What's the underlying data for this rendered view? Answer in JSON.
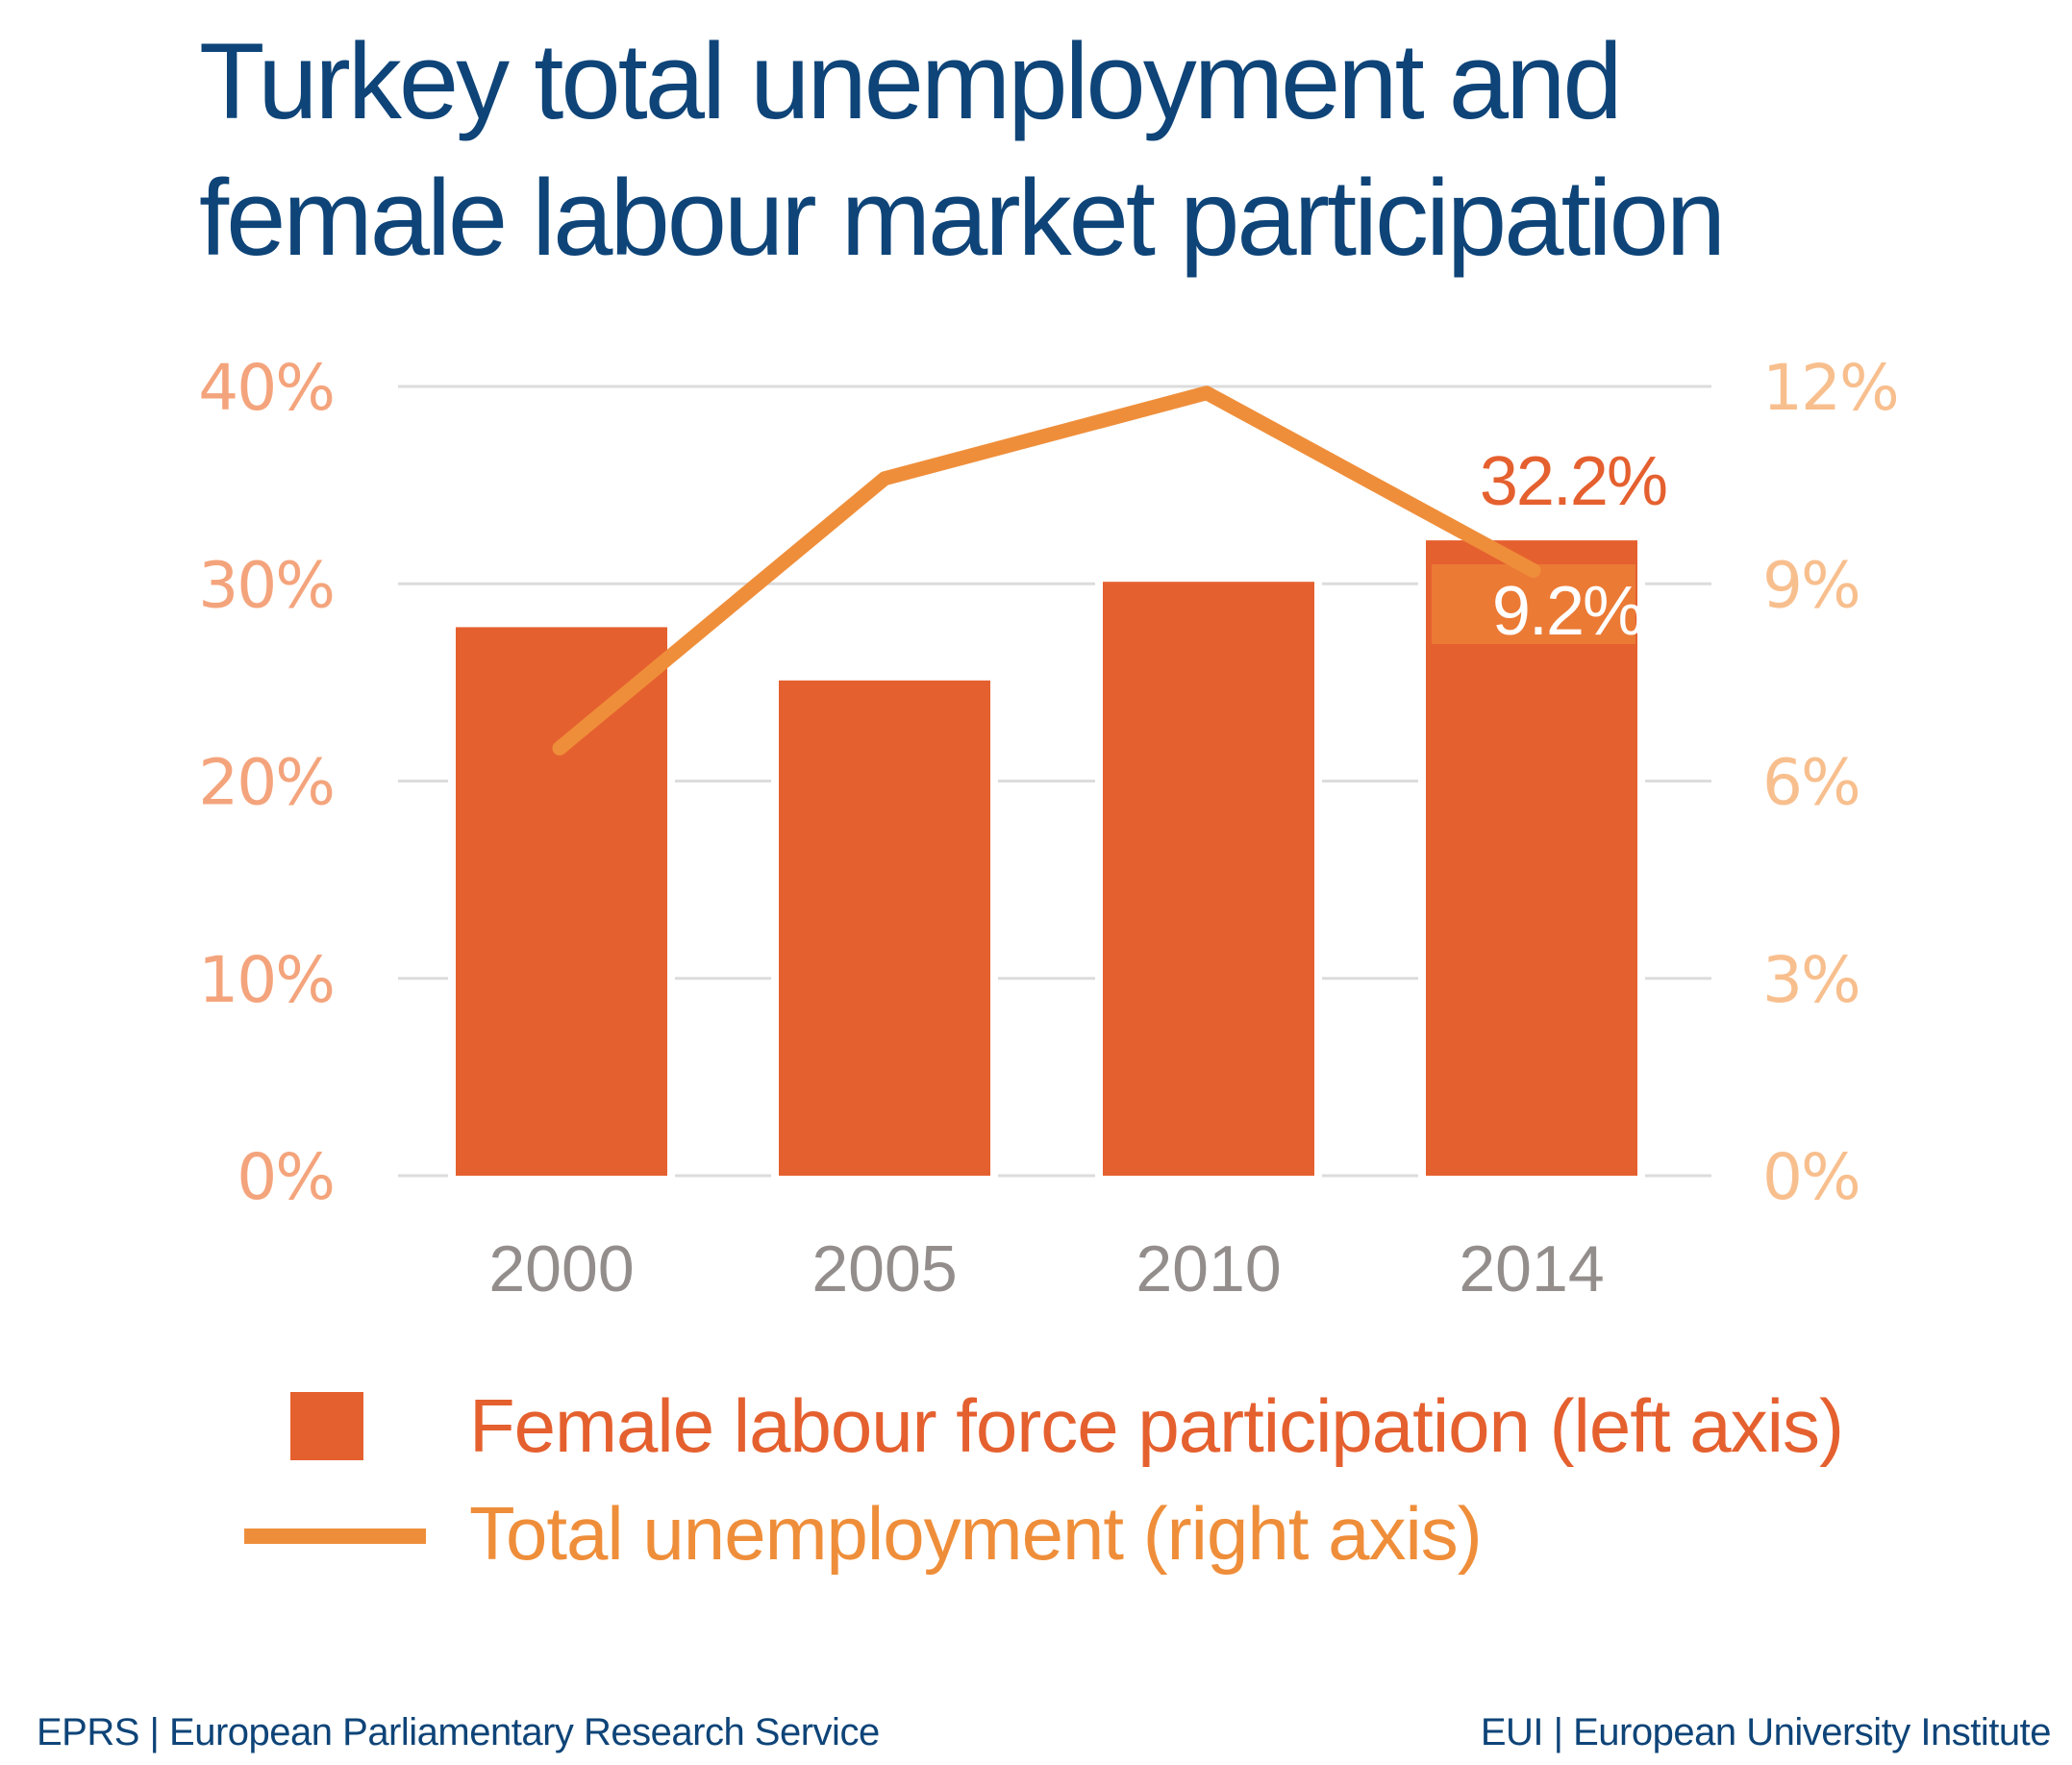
{
  "title": {
    "line1": "Turkey total unemployment and",
    "line2": "female labour market participation"
  },
  "colors": {
    "title": "#0E4478",
    "bar": "#E5602F",
    "line": "#EF8E3A",
    "left_axis_labels": "#F4A47C",
    "right_axis_labels": "#F8BF8E",
    "x_labels": "#938E8C",
    "gridline": "#DCDCDC",
    "highlight_box": "#EB7A35",
    "footer": "#0E4478"
  },
  "legend": {
    "bar_label": "Female labour force participation (left axis)",
    "line_label": "Total unemployment (right axis)"
  },
  "annotations": {
    "bar_2014_label": "32.2%",
    "line_2014_label": "9.2%"
  },
  "footer": {
    "left": "EPRS | European Parliamentary Research Service",
    "right": "EUI | European University Institute"
  },
  "chart_data": {
    "type": "bar",
    "title": "Turkey total unemployment and female labour market participation",
    "categories": [
      "2000",
      "2005",
      "2010",
      "2014"
    ],
    "series": [
      {
        "name": "Female labour force participation (left axis)",
        "type": "bar",
        "axis": "left",
        "values": [
          27.8,
          25.1,
          30.1,
          32.2
        ]
      },
      {
        "name": "Total unemployment (right axis)",
        "type": "line",
        "axis": "right",
        "values": [
          6.5,
          10.6,
          11.9,
          9.2
        ]
      }
    ],
    "left_axis": {
      "ylim": [
        0,
        40
      ],
      "ticks": [
        "0%",
        "10%",
        "20%",
        "30%",
        "40%"
      ],
      "tick_values": [
        0,
        10,
        20,
        30,
        40
      ]
    },
    "right_axis": {
      "ylim": [
        0,
        12
      ],
      "ticks": [
        "0%",
        "3%",
        "6%",
        "9%",
        "12%"
      ],
      "tick_values": [
        0,
        3,
        6,
        9,
        12
      ]
    },
    "xlabel": "",
    "ylabel": "",
    "grid": true,
    "legend_position": "bottom",
    "data_labels": [
      {
        "series": "Female labour force participation (left axis)",
        "category": "2014",
        "text": "32.2%"
      },
      {
        "series": "Total unemployment (right axis)",
        "category": "2014",
        "text": "9.2%"
      }
    ]
  }
}
